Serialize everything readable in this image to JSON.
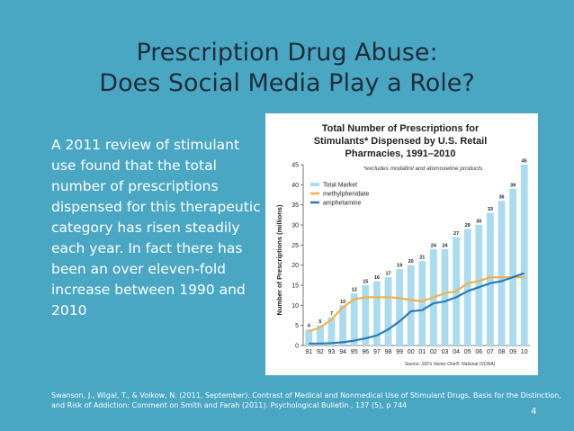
{
  "slide": {
    "title_line1": "Prescription Drug Abuse:",
    "title_line2": "Does Social Media Play a Role?",
    "body_lines": [
      "A 2011 review of stimulant",
      "use found that the total",
      "number of prescriptions",
      "dispensed for this therapeutic",
      "category has risen steadily",
      "each year. In fact there has",
      "been an over eleven-fold",
      "increase between 1990 and",
      "2010"
    ],
    "citation_line1": "Swanson, J., Wigal, T., & Volkow, N. (2011, September). Contrast of Medical and Nonmedical Use of Stimulant Drugs, Basis for the Distinction,",
    "citation_line2": "and Risk of Addiction: Comment on Smith and Farah (2011). Psychological Bulletin , 137 (5), p 744",
    "page_number": "4"
  },
  "colors": {
    "background": "#4aa7c4",
    "total_bar": "#a9dcee",
    "methylphenidate": "#f3b04a",
    "amphetamine": "#2b7bb9"
  },
  "chart_data": {
    "type": "bar",
    "title_line1": "Total Number of Prescriptions for",
    "title_line2": "Stimulants* Dispensed by U.S. Retail",
    "title_line3": "Pharmacies, 1991–2010",
    "subtitle": "*excludes modafinil and atomoxetine products",
    "ylabel": "Number of Prescriptions (millions)",
    "ylim": [
      0,
      45
    ],
    "yticks": [
      "0",
      "5",
      "10",
      "15",
      "20",
      "25",
      "30",
      "35",
      "40",
      "45"
    ],
    "source": "Source: SDI's Vector One®: National (VONA)",
    "categories": [
      "91",
      "92",
      "93",
      "94",
      "95",
      "96",
      "97",
      "98",
      "99",
      "00",
      "01",
      "02",
      "03",
      "04",
      "05",
      "06",
      "07",
      "08",
      "09",
      "10"
    ],
    "series": [
      {
        "name": "Total Market",
        "kind": "bar",
        "values": [
          4,
          5,
          7,
          10,
          13,
          15,
          16,
          17,
          19,
          20,
          21,
          24,
          24,
          27,
          29,
          30,
          33,
          36,
          39,
          45
        ]
      },
      {
        "name": "methylphenidate",
        "kind": "line",
        "values": [
          3.5,
          4.5,
          6.5,
          9.5,
          11.5,
          12,
          12,
          12,
          11.8,
          11.3,
          11,
          12,
          13,
          13.5,
          15.5,
          16,
          17,
          17,
          17,
          17
        ]
      },
      {
        "name": "amphetamine",
        "kind": "line",
        "values": [
          0.5,
          0.5,
          0.6,
          0.8,
          1.2,
          1.8,
          2.5,
          4,
          6,
          8.5,
          8.8,
          10.5,
          11,
          12,
          13.5,
          14.5,
          15.5,
          16,
          17,
          18
        ]
      }
    ],
    "legend": [
      "Total Market",
      "methylphenidate",
      "amphetamine"
    ]
  }
}
